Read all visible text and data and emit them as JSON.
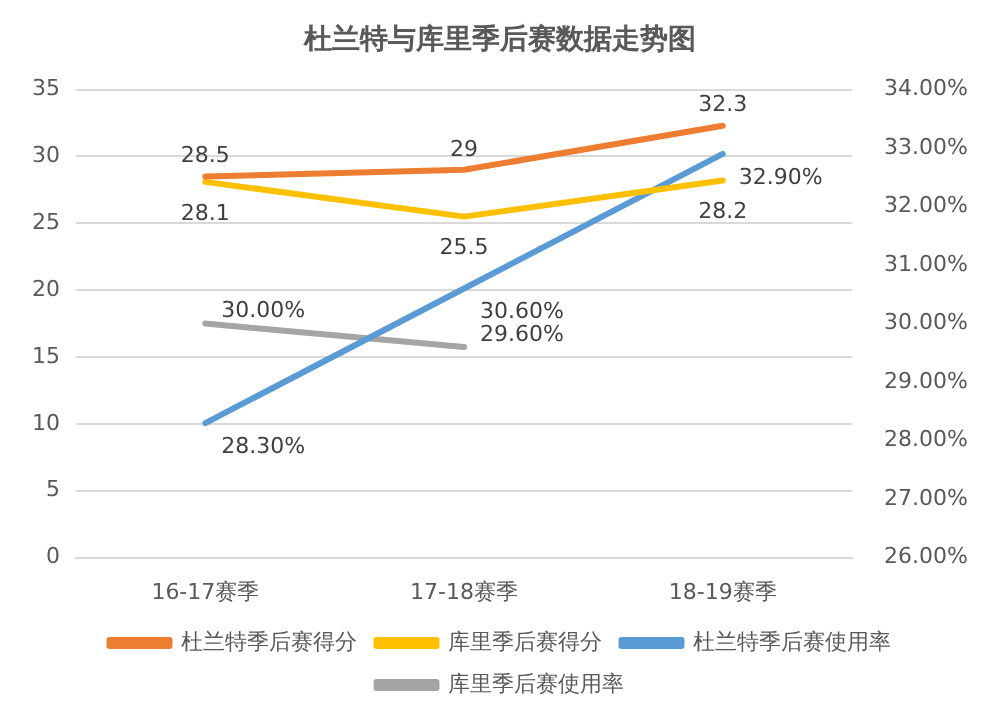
{
  "chart_data": {
    "type": "line",
    "title": "杜兰特与库里季后赛数据走势图",
    "categories": [
      "16-17赛季",
      "17-18赛季",
      "18-19赛季"
    ],
    "series": [
      {
        "name": "杜兰特季后赛得分",
        "color": "#ed7d31",
        "values": [
          28.5,
          29,
          32.3
        ],
        "value_labels": [
          "28.5",
          "29",
          "32.3"
        ]
      },
      {
        "name": "库里季后赛得分",
        "color": "#ffc000",
        "values": [
          28.1,
          25.5,
          28.2
        ],
        "value_labels": [
          "28.1",
          "25.5",
          "28.2"
        ]
      },
      {
        "name": "杜兰特季后赛使用率",
        "color": "#5b9bd5",
        "axis": "y2",
        "values": [
          28.3,
          30.6,
          32.9
        ],
        "value_labels": [
          "28.30%",
          "30.60%",
          "32.90%"
        ]
      },
      {
        "name": "库里季后赛使用率",
        "color": "#a5a5a5",
        "axis": "y2",
        "values": [
          30.0,
          29.6,
          null
        ],
        "value_labels": [
          "30.00%",
          "29.60%",
          null
        ]
      }
    ],
    "ylim": [
      0,
      35
    ],
    "yticks": [
      0,
      5,
      10,
      15,
      20,
      25,
      30,
      35
    ],
    "y2lim": [
      26,
      34
    ],
    "y2ticks": [
      {
        "value": 26,
        "label": "26.00%"
      },
      {
        "value": 27,
        "label": "27.00%"
      },
      {
        "value": 28,
        "label": "28.00%"
      },
      {
        "value": 29,
        "label": "29.00%"
      },
      {
        "value": 30,
        "label": "30.00%"
      },
      {
        "value": 31,
        "label": "31.00%"
      },
      {
        "value": 32,
        "label": "32.00%"
      },
      {
        "value": 33,
        "label": "33.00%"
      },
      {
        "value": 34,
        "label": "34.00%"
      }
    ],
    "grid": "y",
    "legend": "bottom",
    "marker": "none",
    "line_style": "solid"
  }
}
